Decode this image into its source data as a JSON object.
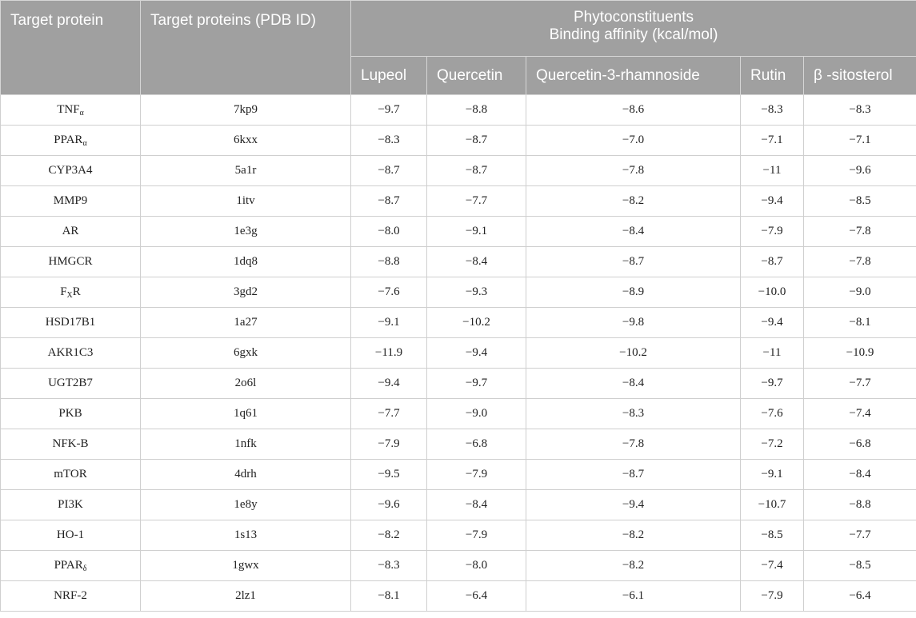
{
  "header": {
    "col_target_protein": "Target protein",
    "col_pdb": "Target proteins (PDB ID)",
    "group_line1": "Phytoconstituents",
    "group_line2": "Binding affinity (kcal/mol)",
    "compounds": [
      "Lupeol",
      "Quercetin",
      "Quercetin-3-rhamnoside",
      "Rutin",
      "β -sitosterol"
    ]
  },
  "rows": [
    {
      "protein": "TNF",
      "sub": "α",
      "pdb": "7kp9",
      "values": [
        "−9.7",
        "−8.8",
        "−8.6",
        "−8.3",
        "−8.3"
      ]
    },
    {
      "protein": "PPAR",
      "sub": "α",
      "pdb": "6kxx",
      "values": [
        "−8.3",
        "−8.7",
        "−7.0",
        "−7.1",
        "−7.1"
      ]
    },
    {
      "protein": "CYP3A4",
      "sub": "",
      "pdb": "5a1r",
      "values": [
        "−8.7",
        "−8.7",
        "−7.8",
        "−11",
        "−9.6"
      ]
    },
    {
      "protein": "MMP9",
      "sub": "",
      "pdb": "1itv",
      "values": [
        "−8.7",
        "−7.7",
        "−8.2",
        "−9.4",
        "−8.5"
      ]
    },
    {
      "protein": "AR",
      "sub": "",
      "pdb": "1e3g",
      "values": [
        "−8.0",
        "−9.1",
        "−8.4",
        "−7.9",
        "−7.8"
      ]
    },
    {
      "protein": "HMGCR",
      "sub": "",
      "pdb": "1dq8",
      "values": [
        "−8.8",
        "−8.4",
        "−8.7",
        "−8.7",
        "−7.8"
      ]
    },
    {
      "protein": "F",
      "sub": "X",
      "suffix": "R",
      "pdb": "3gd2",
      "values": [
        "−7.6",
        "−9.3",
        "−8.9",
        "−10.0",
        "−9.0"
      ]
    },
    {
      "protein": "HSD17B1",
      "sub": "",
      "pdb": "1a27",
      "values": [
        "−9.1",
        "−10.2",
        "−9.8",
        "−9.4",
        "−8.1"
      ]
    },
    {
      "protein": "AKR1C3",
      "sub": "",
      "pdb": "6gxk",
      "values": [
        "−11.9",
        "−9.4",
        "−10.2",
        "−11",
        "−10.9"
      ]
    },
    {
      "protein": "UGT2B7",
      "sub": "",
      "pdb": "2o6l",
      "values": [
        "−9.4",
        "−9.7",
        "−8.4",
        "−9.7",
        "−7.7"
      ]
    },
    {
      "protein": "PKB",
      "sub": "",
      "pdb": "1q61",
      "values": [
        "−7.7",
        "−9.0",
        "−8.3",
        "−7.6",
        "−7.4"
      ]
    },
    {
      "protein": "NFK-B",
      "sub": "",
      "pdb": "1nfk",
      "values": [
        "−7.9",
        "−6.8",
        "−7.8",
        "−7.2",
        "−6.8"
      ]
    },
    {
      "protein": "mTOR",
      "sub": "",
      "pdb": "4drh",
      "values": [
        "−9.5",
        "−7.9",
        "−8.7",
        "−9.1",
        "−8.4"
      ]
    },
    {
      "protein": "PI3K",
      "sub": "",
      "pdb": "1e8y",
      "values": [
        "−9.6",
        "−8.4",
        "−9.4",
        "−10.7",
        "−8.8"
      ]
    },
    {
      "protein": "HO-1",
      "sub": "",
      "pdb": "1s13",
      "values": [
        "−8.2",
        "−7.9",
        "−8.2",
        "−8.5",
        "−7.7"
      ]
    },
    {
      "protein": "PPAR",
      "sub": "δ",
      "pdb": "1gwx",
      "values": [
        "−8.3",
        "−8.0",
        "−8.2",
        "−7.4",
        "−8.5"
      ]
    },
    {
      "protein": "NRF-2",
      "sub": "",
      "pdb": "2lz1",
      "values": [
        "−8.1",
        "−6.4",
        "−6.1",
        "−7.9",
        "−6.4"
      ]
    }
  ]
}
